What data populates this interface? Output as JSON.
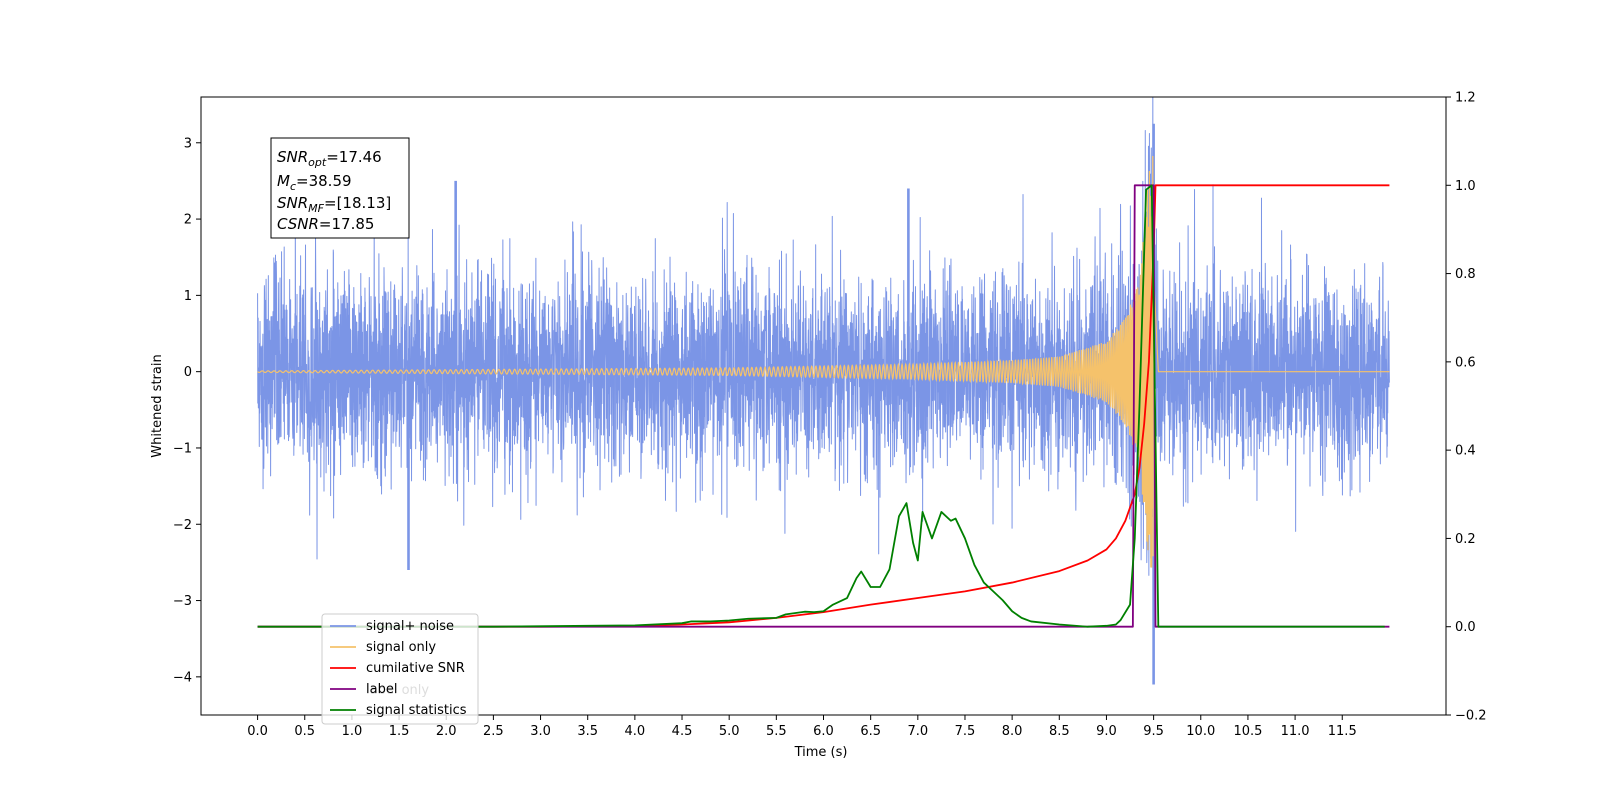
{
  "chart_data": {
    "type": "line",
    "title": "",
    "xlabel": "Time (s)",
    "ylabel": "Whitened strain",
    "xlim": [
      -0.6,
      12.6
    ],
    "ylim_left": [
      -4.5,
      3.6
    ],
    "ylim_right": [
      -0.2,
      1.2
    ],
    "x_ticks": [
      "0.0",
      "0.5",
      "1.0",
      "1.5",
      "2.0",
      "2.5",
      "3.0",
      "3.5",
      "4.0",
      "4.5",
      "5.0",
      "5.5",
      "6.0",
      "6.5",
      "7.0",
      "7.5",
      "8.0",
      "8.5",
      "9.0",
      "9.5",
      "10.0",
      "10.5",
      "11.0",
      "11.5"
    ],
    "y_left_ticks": [
      "3",
      "2",
      "1",
      "0",
      "−1",
      "−2",
      "−3",
      "−4"
    ],
    "y_right_ticks": [
      "1.2",
      "1.0",
      "0.8",
      "0.6",
      "0.4",
      "0.2",
      "0.0",
      "−0.2"
    ],
    "grid": false,
    "legend": {
      "position": "lower-left",
      "entries": [
        {
          "label": "signal+ noise",
          "color": "#7b95e6"
        },
        {
          "label": "signal only",
          "color": "#f5c26b"
        },
        {
          "label": "cumilative SNR",
          "color": "#ff0000"
        },
        {
          "label": "label",
          "color": "#800080"
        },
        {
          "label": "signal statistics",
          "color": "#008000"
        }
      ],
      "hidden_label": "label only"
    },
    "annotation": {
      "snr_opt_label": "SNR",
      "snr_opt_sub": "opt",
      "snr_opt_value": "=17.46",
      "mc_label": "M",
      "mc_sub": "c",
      "mc_value": "=38.59",
      "snr_mf_label": "SNR",
      "snr_mf_sub": "MF",
      "snr_mf_value": "=[18.13]",
      "csnr_label": "CSNR",
      "csnr_value": "=17.85"
    },
    "series": [
      {
        "name": "signal+ noise",
        "axis": "left",
        "color": "#7b95e6",
        "description": "whitened strain noise spanning 0 to 12 s, mostly within ±1.5 with spikes near ±2.5; chirp peak reaching 3.25 and −4.1 at 9.5 s",
        "x_range": [
          0.0,
          12.0
        ],
        "envelope": [
          -1.5,
          1.5
        ],
        "peaks": [
          {
            "x": 9.5,
            "y": 3.25
          },
          {
            "x": 9.5,
            "y": -4.1
          },
          {
            "x": 1.6,
            "y": -2.6
          },
          {
            "x": 2.1,
            "y": 2.5
          },
          {
            "x": 6.9,
            "y": 2.4
          }
        ]
      },
      {
        "name": "signal only",
        "axis": "left",
        "color": "#f5c26b",
        "description": "chirp signal growing in amplitude toward merger",
        "x_range": [
          0.0,
          12.0
        ],
        "merger_x": 9.5,
        "envelope": [
          [
            0.0,
            0.01
          ],
          [
            5.0,
            0.05
          ],
          [
            7.0,
            0.1
          ],
          [
            8.0,
            0.15
          ],
          [
            8.5,
            0.2
          ],
          [
            9.0,
            0.4
          ],
          [
            9.2,
            0.7
          ],
          [
            9.35,
            1.2
          ],
          [
            9.45,
            2.6
          ],
          [
            9.5,
            2.9
          ],
          [
            9.55,
            0.0
          ],
          [
            12.0,
            0.0
          ]
        ]
      },
      {
        "name": "cumilative SNR",
        "axis": "right",
        "color": "#ff0000",
        "x": [
          0.0,
          3.0,
          4.0,
          4.5,
          5.0,
          5.5,
          6.0,
          6.5,
          7.0,
          7.5,
          8.0,
          8.5,
          8.8,
          9.0,
          9.1,
          9.2,
          9.3,
          9.35,
          9.4,
          9.45,
          9.5,
          9.52,
          12.0
        ],
        "y": [
          0.0,
          0.0,
          0.001,
          0.005,
          0.01,
          0.02,
          0.033,
          0.05,
          0.065,
          0.08,
          0.1,
          0.126,
          0.15,
          0.175,
          0.2,
          0.24,
          0.3,
          0.36,
          0.46,
          0.6,
          0.85,
          1.0,
          1.0
        ]
      },
      {
        "name": "label",
        "axis": "right",
        "color": "#800080",
        "x": [
          0.0,
          9.28,
          9.3,
          9.5,
          9.52,
          12.0
        ],
        "y": [
          0.0,
          0.0,
          1.0,
          1.0,
          0.0,
          0.0
        ]
      },
      {
        "name": "signal statistics",
        "axis": "right",
        "color": "#008000",
        "x": [
          0.0,
          2.5,
          3.5,
          4.0,
          4.5,
          4.6,
          4.8,
          5.0,
          5.2,
          5.5,
          5.6,
          5.8,
          5.9,
          6.0,
          6.1,
          6.25,
          6.35,
          6.4,
          6.5,
          6.6,
          6.7,
          6.8,
          6.88,
          6.95,
          7.0,
          7.05,
          7.15,
          7.25,
          7.35,
          7.4,
          7.5,
          7.6,
          7.7,
          7.8,
          7.9,
          8.0,
          8.1,
          8.2,
          8.5,
          8.8,
          9.0,
          9.1,
          9.15,
          9.25,
          9.3,
          9.35,
          9.42,
          9.48,
          9.55,
          11.95
        ],
        "y": [
          0.0,
          0.0,
          0.002,
          0.003,
          0.008,
          0.012,
          0.012,
          0.014,
          0.018,
          0.02,
          0.028,
          0.034,
          0.033,
          0.035,
          0.05,
          0.065,
          0.11,
          0.125,
          0.09,
          0.09,
          0.13,
          0.25,
          0.28,
          0.19,
          0.15,
          0.26,
          0.2,
          0.26,
          0.24,
          0.245,
          0.2,
          0.14,
          0.1,
          0.08,
          0.06,
          0.035,
          0.02,
          0.012,
          0.005,
          0.0,
          0.002,
          0.005,
          0.015,
          0.05,
          0.2,
          0.5,
          0.99,
          1.0,
          0.0,
          0.0
        ]
      }
    ]
  }
}
